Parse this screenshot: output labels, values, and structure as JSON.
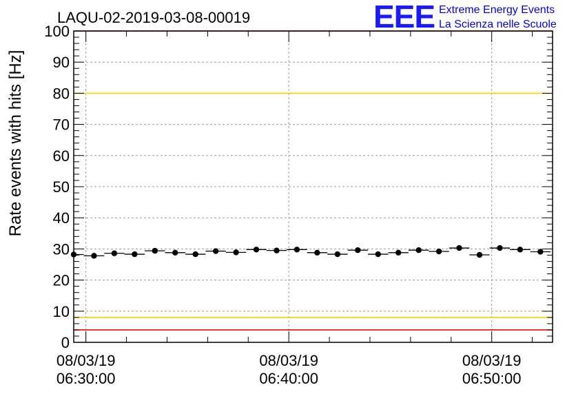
{
  "title": "LAQU-02-2019-03-08-00019",
  "logo": {
    "mark": "EEE",
    "line1": "Extreme Energy Events",
    "line2": "La Scienza nelle Scuole",
    "color": "#1a1aff"
  },
  "chart_data": {
    "type": "scatter",
    "title": "LAQU-02-2019-03-08-00019",
    "xlabel": "",
    "ylabel": "Rate events with hits [Hz]",
    "ylim": [
      0,
      100
    ],
    "yticks": [
      0,
      10,
      20,
      30,
      40,
      50,
      60,
      70,
      80,
      90,
      100
    ],
    "xlim": [
      "06:29:24",
      "06:53:00"
    ],
    "xticks": [
      {
        "time": "06:30:00",
        "date": "08/03/19"
      },
      {
        "time": "06:40:00",
        "date": "08/03/19"
      },
      {
        "time": "06:50:00",
        "date": "08/03/19"
      }
    ],
    "grid": true,
    "reference_lines": [
      {
        "y": 100,
        "color": "#ff0000"
      },
      {
        "y": 80,
        "color": "#ffcc00"
      },
      {
        "y": 8,
        "color": "#ffcc00"
      },
      {
        "y": 4,
        "color": "#ff0000"
      }
    ],
    "bin_width_s": 60,
    "series": [
      {
        "x": [
          "06:29:24",
          "06:30:24",
          "06:31:24",
          "06:32:24",
          "06:33:24",
          "06:34:24",
          "06:35:24",
          "06:36:24",
          "06:37:24",
          "06:38:24",
          "06:39:24",
          "06:40:24",
          "06:41:24",
          "06:42:24",
          "06:43:24",
          "06:44:24",
          "06:45:24",
          "06:46:24",
          "06:47:24",
          "06:48:24",
          "06:49:24",
          "06:50:24",
          "06:51:24",
          "06:52:24"
        ],
        "values": [
          28.2,
          27.8,
          28.6,
          28.3,
          29.4,
          28.8,
          28.3,
          29.3,
          28.9,
          29.8,
          29.5,
          29.8,
          28.8,
          28.3,
          29.6,
          28.3,
          28.8,
          29.6,
          29.2,
          30.3,
          28.1,
          30.3,
          29.8,
          29.1
        ]
      }
    ]
  }
}
